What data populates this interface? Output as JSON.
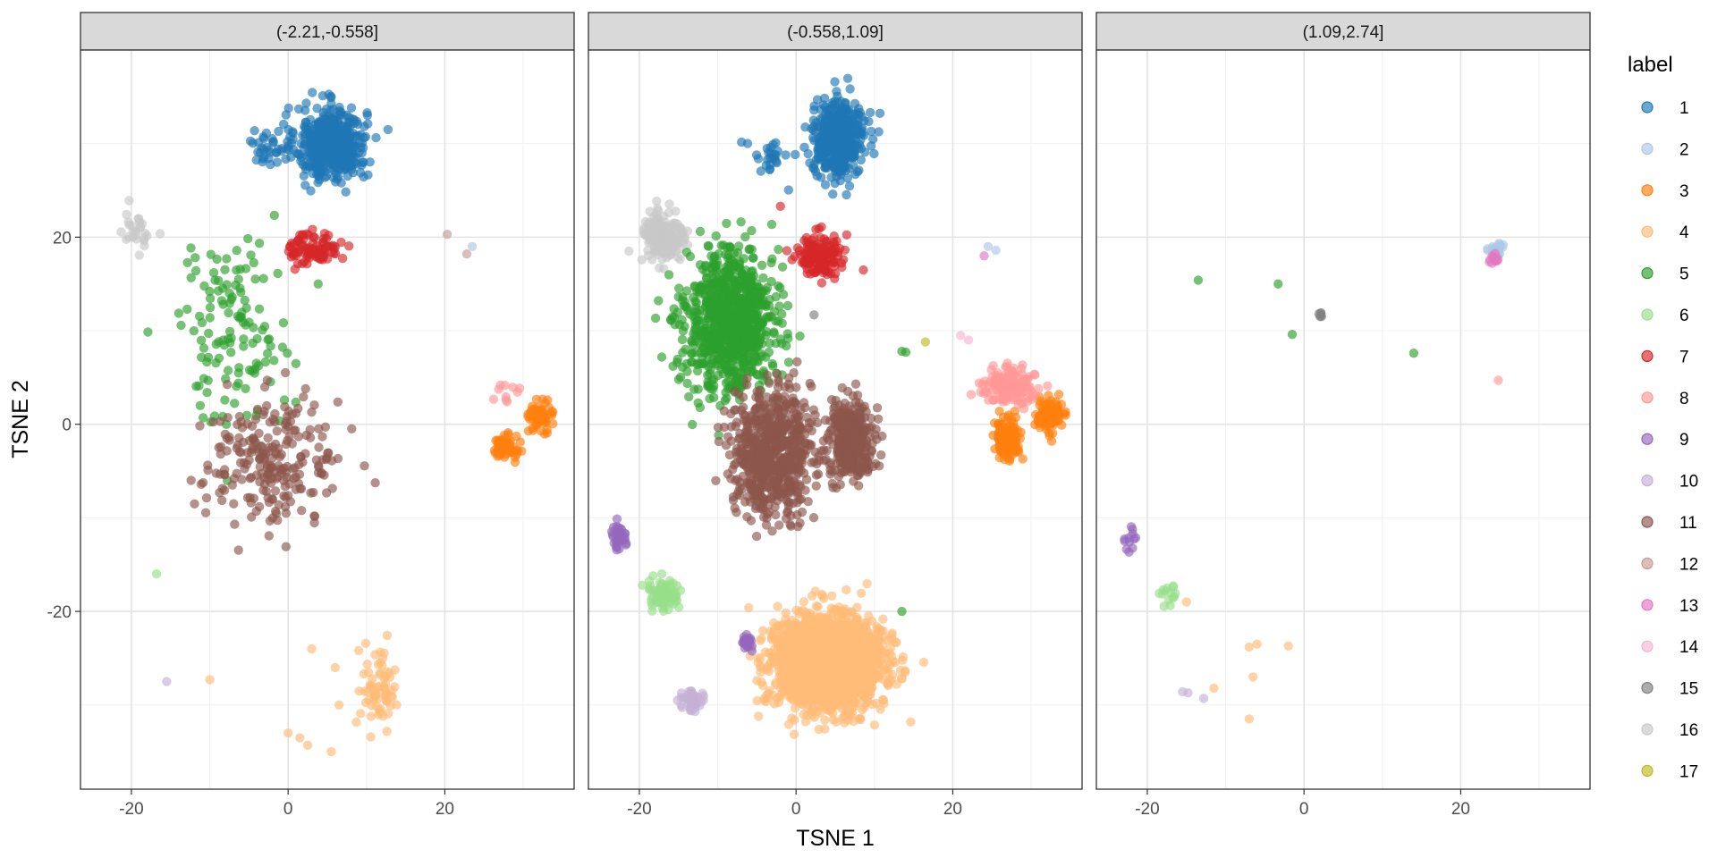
{
  "chart_data": {
    "type": "scatter",
    "facet_labels": [
      "(-2.21,-0.558]",
      "(-0.558,1.09]",
      "(1.09,2.74]"
    ],
    "xlabel": "TSNE 1",
    "ylabel": "TSNE 2",
    "xlim": [
      -26.5,
      36.5
    ],
    "ylim": [
      -39,
      40
    ],
    "x_ticks": [
      -20,
      0,
      20
    ],
    "y_ticks": [
      -20,
      0,
      20
    ],
    "grid": true,
    "legend": {
      "title": "label",
      "placement": "right",
      "entries": [
        "1",
        "2",
        "3",
        "4",
        "5",
        "6",
        "7",
        "8",
        "9",
        "10",
        "11",
        "12",
        "13",
        "14",
        "15",
        "16",
        "17"
      ]
    },
    "colors": {
      "1": "#1f77b4",
      "2": "#aec7e8",
      "3": "#ff7f0e",
      "4": "#ffbb78",
      "5": "#2ca02c",
      "6": "#98df8a",
      "7": "#d62728",
      "8": "#ff9896",
      "9": "#9467bd",
      "10": "#c5b0d5",
      "11": "#8c564b",
      "12": "#c49c94",
      "13": "#e377c2",
      "14": "#f7b6d2",
      "15": "#7f7f7f",
      "16": "#c7c7c7",
      "17": "#bcbd22"
    },
    "point_alpha": 0.65,
    "panels": [
      {
        "facet": "(-2.21,-0.558]",
        "clusters": [
          {
            "label": "1",
            "n": 480,
            "cx": 5.5,
            "cy": 30,
            "sx": 3.0,
            "sy": 2.6
          },
          {
            "label": "1",
            "n": 30,
            "cx": -2.5,
            "cy": 29.5,
            "sx": 1.3,
            "sy": 1.4
          },
          {
            "label": "16",
            "n": 26,
            "cx": -19.5,
            "cy": 20.5,
            "sx": 1.6,
            "sy": 1.5
          },
          {
            "label": "5",
            "n": 130,
            "cx": -7,
            "cy": 10,
            "sx": 5.0,
            "sy": 6.5
          },
          {
            "label": "7",
            "n": 90,
            "cx": 3.3,
            "cy": 18.8,
            "sx": 2.1,
            "sy": 1.2
          },
          {
            "label": "11",
            "n": 230,
            "cx": -2,
            "cy": -4,
            "sx": 6.0,
            "sy": 4.5
          },
          {
            "label": "3",
            "n": 70,
            "cx": 27.5,
            "cy": -2.5,
            "sx": 1.1,
            "sy": 0.9
          },
          {
            "label": "3",
            "n": 60,
            "cx": 32.3,
            "cy": 1,
            "sx": 1.0,
            "sy": 1.0
          },
          {
            "label": "8",
            "n": 10,
            "cx": 27.5,
            "cy": 3,
            "sx": 1.5,
            "sy": 1.5
          },
          {
            "label": "4",
            "n": 70,
            "cx": 11.5,
            "cy": -28,
            "sx": 1.5,
            "sy": 3.0
          }
        ],
        "points": [
          {
            "label": "12",
            "x": 20.3,
            "y": 20.3
          },
          {
            "label": "12",
            "x": 22.8,
            "y": 18.2
          },
          {
            "label": "2",
            "x": 23.5,
            "y": 19.0
          },
          {
            "label": "6",
            "x": -16.8,
            "y": -16.0
          },
          {
            "label": "10",
            "x": -15.5,
            "y": -27.5
          },
          {
            "label": "4",
            "x": -10.0,
            "y": -27.3
          },
          {
            "label": "4",
            "x": 3.0,
            "y": -24.0
          },
          {
            "label": "4",
            "x": 6.0,
            "y": -26.0
          },
          {
            "label": "4",
            "x": 6.5,
            "y": -30.0
          },
          {
            "label": "4",
            "x": 0.0,
            "y": -33.0
          },
          {
            "label": "4",
            "x": 1.5,
            "y": -33.5
          },
          {
            "label": "4",
            "x": 2.5,
            "y": -34.3
          },
          {
            "label": "4",
            "x": 5.5,
            "y": -35.0
          }
        ]
      },
      {
        "facet": "(-0.558,1.09]",
        "clusters": [
          {
            "label": "1",
            "n": 450,
            "cx": 5.5,
            "cy": 30.5,
            "sx": 2.2,
            "sy": 2.6
          },
          {
            "label": "1",
            "n": 25,
            "cx": -3.5,
            "cy": 28.5,
            "sx": 1.7,
            "sy": 1.4
          },
          {
            "label": "16",
            "n": 180,
            "cx": -17,
            "cy": 20,
            "sx": 1.8,
            "sy": 2.0
          },
          {
            "label": "5",
            "n": 900,
            "cx": -8.5,
            "cy": 11,
            "sx": 3.8,
            "sy": 5.0
          },
          {
            "label": "7",
            "n": 150,
            "cx": 3,
            "cy": 18,
            "sx": 2.0,
            "sy": 1.5
          },
          {
            "label": "11",
            "n": 700,
            "cx": -3,
            "cy": -3,
            "sx": 3.3,
            "sy": 4.3
          },
          {
            "label": "11",
            "n": 350,
            "cx": 7,
            "cy": -1.5,
            "sx": 2.0,
            "sy": 2.6
          },
          {
            "label": "3",
            "n": 150,
            "cx": 27,
            "cy": -1.5,
            "sx": 1.1,
            "sy": 1.4
          },
          {
            "label": "3",
            "n": 110,
            "cx": 32.3,
            "cy": 1,
            "sx": 1.1,
            "sy": 1.1
          },
          {
            "label": "8",
            "n": 140,
            "cx": 27,
            "cy": 4,
            "sx": 2.2,
            "sy": 1.3
          },
          {
            "label": "9",
            "n": 35,
            "cx": -22.5,
            "cy": -12,
            "sx": 0.7,
            "sy": 0.8
          },
          {
            "label": "6",
            "n": 90,
            "cx": -17,
            "cy": -18,
            "sx": 1.3,
            "sy": 1.1
          },
          {
            "label": "4",
            "n": 2200,
            "cx": 4,
            "cy": -25.5,
            "sx": 4.5,
            "sy": 3.2
          },
          {
            "label": "10",
            "n": 45,
            "cx": -13.5,
            "cy": -29.5,
            "sx": 1.1,
            "sy": 0.9
          },
          {
            "label": "9",
            "n": 20,
            "cx": -6.3,
            "cy": -23.2,
            "sx": 0.4,
            "sy": 0.5
          }
        ],
        "points": [
          {
            "label": "2",
            "x": 24.5,
            "y": 19.0
          },
          {
            "label": "2",
            "x": 25.5,
            "y": 18.6
          },
          {
            "label": "13",
            "x": 24.0,
            "y": 18.0
          },
          {
            "label": "5",
            "x": 14.0,
            "y": 7.7
          },
          {
            "label": "5",
            "x": 13.5,
            "y": 7.8
          },
          {
            "label": "17",
            "x": 16.5,
            "y": 8.8
          },
          {
            "label": "14",
            "x": 21.0,
            "y": 9.5
          },
          {
            "label": "14",
            "x": 22.0,
            "y": 9.0
          },
          {
            "label": "15",
            "x": 2.3,
            "y": 11.7
          },
          {
            "label": "7",
            "x": -2.0,
            "y": 23.3
          },
          {
            "label": "5",
            "x": 13.5,
            "y": -20.0
          }
        ]
      },
      {
        "facet": "(1.09,2.74]",
        "clusters": [
          {
            "label": "2",
            "n": 35,
            "cx": 24.5,
            "cy": 18.8,
            "sx": 0.7,
            "sy": 0.4
          },
          {
            "label": "13",
            "n": 12,
            "cx": 24.3,
            "cy": 17.8,
            "sx": 0.5,
            "sy": 0.4
          },
          {
            "label": "9",
            "n": 12,
            "cx": -22.5,
            "cy": -12.5,
            "sx": 1.0,
            "sy": 0.8
          },
          {
            "label": "6",
            "n": 14,
            "cx": -17.3,
            "cy": -18.3,
            "sx": 0.9,
            "sy": 1.1
          },
          {
            "label": "15",
            "n": 6,
            "cx": 2.2,
            "cy": 11.8,
            "sx": 0.2,
            "sy": 0.2
          }
        ],
        "points": [
          {
            "label": "5",
            "x": -13.5,
            "y": 15.4
          },
          {
            "label": "5",
            "x": -3.3,
            "y": 15.0
          },
          {
            "label": "5",
            "x": -1.5,
            "y": 9.6
          },
          {
            "label": "5",
            "x": 14.0,
            "y": 7.6
          },
          {
            "label": "8",
            "x": 24.8,
            "y": 4.7
          },
          {
            "label": "4",
            "x": -6.0,
            "y": -23.5
          },
          {
            "label": "4",
            "x": -7.0,
            "y": -23.8
          },
          {
            "label": "4",
            "x": -2.0,
            "y": -23.7
          },
          {
            "label": "4",
            "x": -6.5,
            "y": -27.0
          },
          {
            "label": "4",
            "x": -11.5,
            "y": -28.2
          },
          {
            "label": "4",
            "x": -7.0,
            "y": -31.5
          },
          {
            "label": "4",
            "x": -15.0,
            "y": -19.0
          },
          {
            "label": "10",
            "x": -15.5,
            "y": -28.6
          },
          {
            "label": "10",
            "x": -14.8,
            "y": -28.7
          },
          {
            "label": "10",
            "x": -12.8,
            "y": -29.3
          }
        ]
      }
    ]
  }
}
